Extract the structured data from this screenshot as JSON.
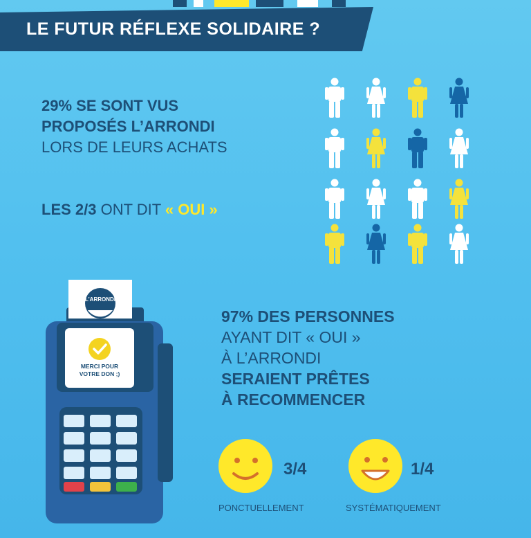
{
  "header": {
    "title": "LE FUTUR RÉFLEXE SOLIDAIRE ?"
  },
  "stat1": {
    "line1": "29% SE SONT VUS",
    "line2": "PROPOSÉS L’ARRONDI",
    "line3": "LORS DE LEURS ACHATS"
  },
  "stat2": {
    "bold": "LES 2/3",
    "rest": " ONT DIT ",
    "oui": "« OUI »"
  },
  "people": [
    {
      "gender": "male",
      "color": "#ffffff"
    },
    {
      "gender": "female",
      "color": "#ffffff"
    },
    {
      "gender": "male",
      "color": "#f4e23c"
    },
    {
      "gender": "female",
      "color": "#1566a6"
    },
    {
      "gender": "male",
      "color": "#ffffff"
    },
    {
      "gender": "female",
      "color": "#f4e23c"
    },
    {
      "gender": "male",
      "color": "#1566a6"
    },
    {
      "gender": "female",
      "color": "#ffffff"
    },
    {
      "gender": "male",
      "color": "#ffffff"
    },
    {
      "gender": "female",
      "color": "#ffffff"
    },
    {
      "gender": "male",
      "color": "#ffffff"
    },
    {
      "gender": "female",
      "color": "#f4e23c"
    },
    {
      "gender": "male",
      "color": "#f4e23c"
    },
    {
      "gender": "female",
      "color": "#1566a6"
    },
    {
      "gender": "male",
      "color": "#f4e23c"
    },
    {
      "gender": "female",
      "color": "#ffffff"
    }
  ],
  "terminal": {
    "logo": "L’ARRONDI",
    "screen_line1": "MERCI POUR",
    "screen_line2": "VOTRE DON ;)"
  },
  "stat3": {
    "line1": "97% DES PERSONNES",
    "line2": "AYANT DIT « OUI »",
    "line3": "À L’ARRONDI",
    "line4": "SERAIENT PRÊTES",
    "line5": "À RECOMMENCER"
  },
  "frequency": [
    {
      "fraction": "3/4",
      "label": "PONCTUELLEMENT"
    },
    {
      "fraction": "1/4",
      "label": "SYSTÉMATIQUEMENT"
    }
  ],
  "colors": {
    "navy": "#1d4f77",
    "yellow": "#ffe82a",
    "blue": "#1566a6",
    "sky": "#52c0ef"
  }
}
